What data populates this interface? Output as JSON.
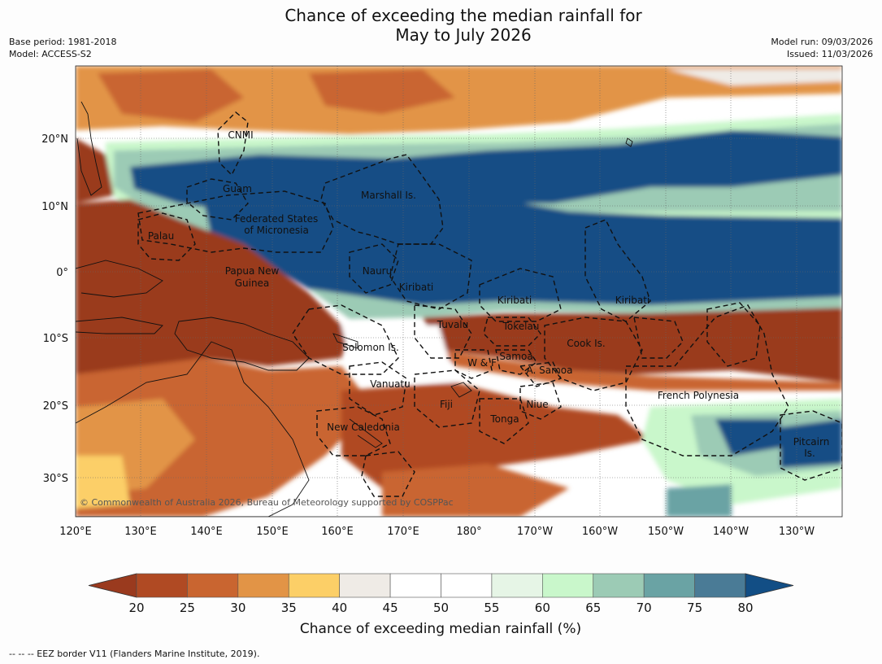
{
  "title_line1": "Chance of exceeding the median rainfall for",
  "title_line2": "May to July 2026",
  "base_period": "Base period: 1981-2018",
  "model": "Model: ACCESS-S2",
  "model_run": "Model run: 09/03/2026",
  "issued": "Issued: 11/03/2026",
  "lat_ticks": [
    "20°N",
    "10°N",
    "0°",
    "10°S",
    "20°S",
    "30°S"
  ],
  "lon_ticks": [
    "120°E",
    "130°E",
    "140°E",
    "150°E",
    "160°E",
    "170°E",
    "180°",
    "170°W",
    "160°W",
    "150°W",
    "140°W",
    "130°W"
  ],
  "regions": [
    {
      "text": "CNMI"
    },
    {
      "text": "Guam"
    },
    {
      "text": "Marshall Is."
    },
    {
      "text": "Federated States"
    },
    {
      "text": "of Micronesia"
    },
    {
      "text": "Palau"
    },
    {
      "text": "Papua New"
    },
    {
      "text": "Guinea"
    },
    {
      "text": "Nauru"
    },
    {
      "text": "Kiribati"
    },
    {
      "text": "Kiribati"
    },
    {
      "text": "Kiribati"
    },
    {
      "text": "Tuvalu"
    },
    {
      "text": "Tokelau"
    },
    {
      "text": "Cook Is."
    },
    {
      "text": "Solomon Is."
    },
    {
      "text": "Samoa"
    },
    {
      "text": "W & F"
    },
    {
      "text": "A. Samoa"
    },
    {
      "text": "Vanuatu"
    },
    {
      "text": "Fiji"
    },
    {
      "text": "Niue"
    },
    {
      "text": "French Polynesia"
    },
    {
      "text": "Tonga"
    },
    {
      "text": "New Caledonia"
    },
    {
      "text": "Pitcairn"
    },
    {
      "text": "Is."
    }
  ],
  "copyright": "© Commonwealth of Australia 2026, Bureau of Meteorology supported by COSPPac",
  "colorbar": {
    "colors": [
      "#9a3a1e",
      "#b04a23",
      "#c96530",
      "#e29446",
      "#fccf67",
      "#efebe6",
      "#ffffff",
      "#ffffff",
      "#e6f5e6",
      "#c9f7cb",
      "#9ccbb5",
      "#6aa3a4",
      "#4a7b96",
      "#124e85"
    ],
    "ticks": [
      "20",
      "25",
      "30",
      "35",
      "40",
      "45",
      "50",
      "55",
      "60",
      "65",
      "70",
      "75",
      "80"
    ],
    "title": "Chance of exceeding median rainfall (%)"
  },
  "footnote": "-- -- -- EEZ border V11 (Flanders Marine Institute, 2019)."
}
